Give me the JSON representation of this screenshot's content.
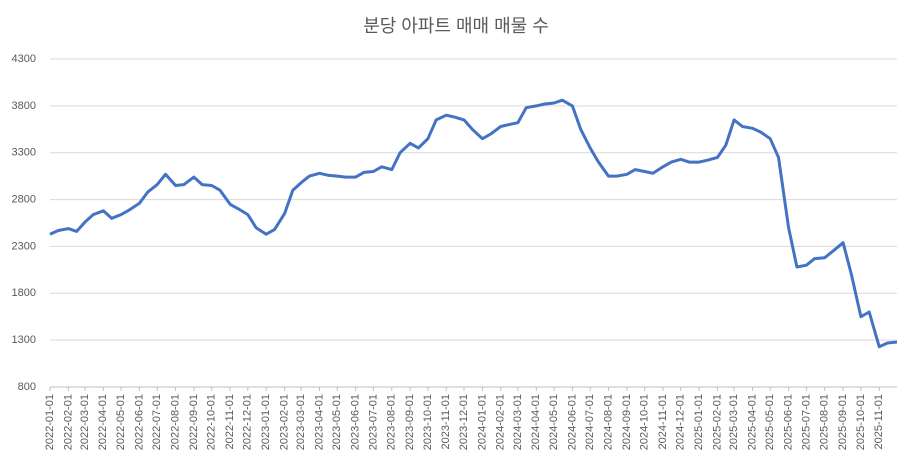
{
  "chart_data": {
    "type": "line",
    "title": "분당 아파트 매매 매물 수",
    "color": "#4472c4",
    "grid": true,
    "ylim": [
      800,
      4300
    ],
    "yticks": [
      800,
      1300,
      1800,
      2300,
      2800,
      3300,
      3800,
      4300
    ],
    "xlim": [
      "2022-01-01",
      "2025-12-01"
    ],
    "xticks": [
      "2022-01-01",
      "2022-02-01",
      "2022-03-01",
      "2022-04-01",
      "2022-05-01",
      "2022-06-01",
      "2022-07-01",
      "2022-08-01",
      "2022-09-01",
      "2022-10-01",
      "2022-11-01",
      "2022-12-01",
      "2023-01-01",
      "2023-02-01",
      "2023-03-01",
      "2023-04-01",
      "2023-05-01",
      "2023-06-01",
      "2023-07-01",
      "2023-08-01",
      "2023-09-01",
      "2023-10-01",
      "2023-11-01",
      "2023-12-01",
      "2024-01-01",
      "2024-02-01",
      "2024-03-01",
      "2024-04-01",
      "2024-05-01",
      "2024-06-01",
      "2024-07-01",
      "2024-08-01",
      "2024-09-01",
      "2024-10-01",
      "2024-11-01",
      "2024-12-01",
      "2025-01-01",
      "2025-02-01",
      "2025-03-01",
      "2025-04-01",
      "2025-05-01",
      "2025-06-01",
      "2025-07-01",
      "2025-08-01",
      "2025-09-01",
      "2025-10-01",
      "2025-11-01"
    ],
    "x": [
      "2022-01-01",
      "2022-01-15",
      "2022-02-01",
      "2022-02-15",
      "2022-03-01",
      "2022-03-15",
      "2022-04-01",
      "2022-04-15",
      "2022-05-01",
      "2022-05-15",
      "2022-06-01",
      "2022-06-15",
      "2022-07-01",
      "2022-07-15",
      "2022-08-01",
      "2022-08-15",
      "2022-09-01",
      "2022-09-15",
      "2022-10-01",
      "2022-10-15",
      "2022-11-01",
      "2022-11-15",
      "2022-12-01",
      "2022-12-15",
      "2023-01-01",
      "2023-01-15",
      "2023-02-01",
      "2023-02-15",
      "2023-03-01",
      "2023-03-15",
      "2023-04-01",
      "2023-04-15",
      "2023-05-01",
      "2023-05-15",
      "2023-06-01",
      "2023-06-15",
      "2023-07-01",
      "2023-07-15",
      "2023-08-01",
      "2023-08-15",
      "2023-09-01",
      "2023-09-15",
      "2023-10-01",
      "2023-10-15",
      "2023-11-01",
      "2023-11-15",
      "2023-12-01",
      "2023-12-15",
      "2024-01-01",
      "2024-01-15",
      "2024-02-01",
      "2024-02-15",
      "2024-03-01",
      "2024-03-15",
      "2024-04-01",
      "2024-04-15",
      "2024-05-01",
      "2024-05-15",
      "2024-06-01",
      "2024-06-15",
      "2024-07-01",
      "2024-07-15",
      "2024-08-01",
      "2024-08-15",
      "2024-09-01",
      "2024-09-15",
      "2024-10-01",
      "2024-10-15",
      "2024-11-01",
      "2024-11-15",
      "2024-12-01",
      "2024-12-15",
      "2025-01-01",
      "2025-01-15",
      "2025-02-01",
      "2025-02-15",
      "2025-03-01",
      "2025-03-15",
      "2025-04-01",
      "2025-04-15",
      "2025-05-01",
      "2025-05-15",
      "2025-06-01",
      "2025-06-15",
      "2025-07-01",
      "2025-07-15",
      "2025-08-01",
      "2025-08-15",
      "2025-09-01",
      "2025-09-15",
      "2025-10-01",
      "2025-10-15",
      "2025-11-01",
      "2025-11-15",
      "2025-12-01"
    ],
    "values": [
      2430,
      2470,
      2490,
      2460,
      2560,
      2640,
      2680,
      2600,
      2640,
      2690,
      2760,
      2880,
      2960,
      3070,
      2950,
      2960,
      3040,
      2960,
      2950,
      2900,
      2750,
      2700,
      2640,
      2500,
      2430,
      2480,
      2650,
      2900,
      2980,
      3050,
      3080,
      3060,
      3050,
      3040,
      3040,
      3090,
      3100,
      3150,
      3120,
      3300,
      3400,
      3350,
      3450,
      3650,
      3700,
      3680,
      3650,
      3550,
      3450,
      3500,
      3580,
      3600,
      3620,
      3780,
      3800,
      3820,
      3830,
      3860,
      3800,
      3550,
      3350,
      3200,
      3050,
      3050,
      3070,
      3120,
      3100,
      3080,
      3150,
      3200,
      3230,
      3200,
      3200,
      3220,
      3250,
      3380,
      3650,
      3580,
      3560,
      3520,
      3450,
      3250,
      2500,
      2080,
      2100,
      2170,
      2180,
      2250,
      2340,
      2000,
      1550,
      1600,
      1230,
      1270,
      1280
    ]
  }
}
